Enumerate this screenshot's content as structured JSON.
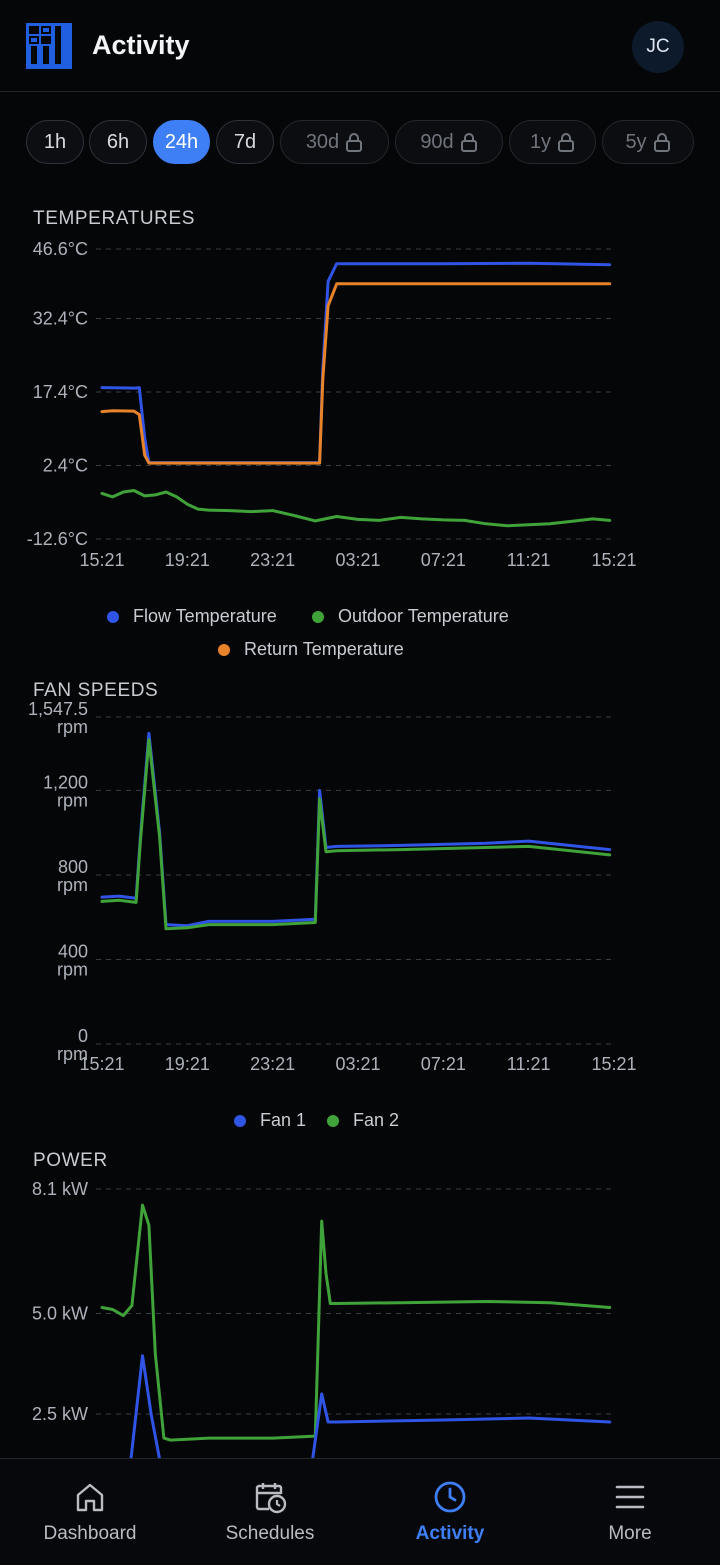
{
  "header": {
    "title": "Activity",
    "avatar_initials": "JC"
  },
  "time_ranges": [
    {
      "label": "1h",
      "active": false,
      "locked": false
    },
    {
      "label": "6h",
      "active": false,
      "locked": false
    },
    {
      "label": "24h",
      "active": true,
      "locked": false
    },
    {
      "label": "7d",
      "active": false,
      "locked": false
    },
    {
      "label": "30d",
      "active": false,
      "locked": true
    },
    {
      "label": "90d",
      "active": false,
      "locked": true
    },
    {
      "label": "1y",
      "active": false,
      "locked": true
    },
    {
      "label": "5y",
      "active": false,
      "locked": true
    }
  ],
  "sections": {
    "temperatures": "TEMPERATURES",
    "fan_speeds": "FAN SPEEDS",
    "power": "POWER"
  },
  "colors": {
    "accent": "#3f7ff6",
    "flow": "#2f54e6",
    "outdoor": "#3fa33a",
    "return": "#e8832a",
    "fan1": "#2f54e6",
    "fan2": "#3fa33a"
  },
  "chart_data": [
    {
      "type": "line",
      "title": "TEMPERATURES",
      "x_ticks": [
        "15:21",
        "19:21",
        "23:21",
        "03:21",
        "07:21",
        "11:21",
        "15:21"
      ],
      "y_ticks": [
        "46.6°C",
        "32.4°C",
        "17.4°C",
        "2.4°C",
        "-12.6°C"
      ],
      "y_tick_values": [
        46.6,
        32.4,
        17.4,
        2.4,
        -12.6
      ],
      "ylim": [
        -12.6,
        46.6
      ],
      "x_range_hours": [
        0,
        24
      ],
      "grid": true,
      "legend_position": "bottom",
      "series": [
        {
          "name": "Flow Temperature",
          "color": "#2f54e6",
          "x": [
            0,
            1.6,
            1.75,
            2.0,
            2.2,
            10.2,
            10.35,
            10.6,
            11.0,
            16,
            20,
            23.8
          ],
          "values": [
            18.3,
            18.2,
            18.3,
            8,
            3.0,
            3.0,
            22,
            40,
            43.6,
            43.6,
            43.7,
            43.4
          ]
        },
        {
          "name": "Return Temperature",
          "color": "#e8832a",
          "x": [
            0,
            0.5,
            1.5,
            1.75,
            2.0,
            2.2,
            10.2,
            10.35,
            10.6,
            11.0,
            16,
            23.8
          ],
          "values": [
            13.4,
            13.6,
            13.5,
            12.8,
            4.5,
            2.9,
            2.9,
            20,
            35,
            39.5,
            39.5,
            39.5
          ]
        },
        {
          "name": "Outdoor Temperature",
          "color": "#3fa33a",
          "x": [
            0,
            0.5,
            1,
            1.5,
            2,
            2.5,
            3,
            3.5,
            4,
            4.5,
            5,
            6,
            7,
            8,
            9,
            10,
            11,
            12,
            13,
            14,
            15,
            16,
            17,
            18,
            19,
            20,
            21,
            22,
            23,
            23.8
          ],
          "values": [
            -3.3,
            -4.0,
            -3.0,
            -2.7,
            -3.8,
            -3.6,
            -3.0,
            -4.0,
            -5.5,
            -6.5,
            -6.7,
            -6.8,
            -7.0,
            -6.8,
            -7.8,
            -8.9,
            -8.0,
            -8.6,
            -8.8,
            -8.2,
            -8.5,
            -8.7,
            -8.8,
            -9.5,
            -9.9,
            -9.7,
            -9.5,
            -9.0,
            -8.5,
            -8.8
          ]
        }
      ]
    },
    {
      "type": "line",
      "title": "FAN SPEEDS",
      "x_ticks": [
        "15:21",
        "19:21",
        "23:21",
        "03:21",
        "07:21",
        "11:21",
        "15:21"
      ],
      "y_ticks": [
        "1,547.5 rpm",
        "1,200 rpm",
        "800 rpm",
        "400 rpm",
        "0 rpm"
      ],
      "y_tick_values": [
        1547.5,
        1200,
        800,
        400,
        0
      ],
      "ylim": [
        0,
        1547.5
      ],
      "x_range_hours": [
        0,
        24
      ],
      "grid": true,
      "legend_position": "bottom",
      "series": [
        {
          "name": "Fan 1",
          "color": "#2f54e6",
          "x": [
            0,
            0.8,
            1.6,
            1.8,
            2.2,
            2.7,
            3.0,
            4,
            5,
            8,
            10.0,
            10.2,
            10.5,
            11,
            14,
            18,
            20,
            23.8
          ],
          "values": [
            695,
            700,
            690,
            980,
            1470,
            1000,
            565,
            560,
            580,
            580,
            590,
            1200,
            930,
            935,
            940,
            950,
            960,
            920
          ]
        },
        {
          "name": "Fan 2",
          "color": "#3fa33a",
          "x": [
            0,
            0.8,
            1.6,
            1.8,
            2.2,
            2.7,
            3.0,
            4,
            5,
            8,
            10.0,
            10.2,
            10.5,
            11,
            14,
            18,
            20,
            23.8
          ],
          "values": [
            675,
            680,
            670,
            960,
            1440,
            980,
            545,
            550,
            565,
            565,
            575,
            1160,
            910,
            915,
            920,
            930,
            935,
            895
          ]
        }
      ]
    },
    {
      "type": "line",
      "title": "POWER",
      "y_ticks": [
        "8.1 kW",
        "5.0 kW",
        "2.5 kW"
      ],
      "y_tick_values": [
        8.1,
        5.0,
        2.5
      ],
      "x_range_hours": [
        0,
        24
      ],
      "grid": true,
      "series": [
        {
          "name": "",
          "color": "#3fa33a",
          "x": [
            0,
            0.5,
            1.0,
            1.4,
            1.9,
            2.2,
            2.5,
            2.9,
            3.2,
            5,
            8,
            10.0,
            10.3,
            10.5,
            10.7,
            11,
            14,
            18,
            21,
            23.8
          ],
          "values": [
            5.15,
            5.1,
            4.95,
            5.2,
            7.7,
            7.2,
            4.0,
            1.9,
            1.85,
            1.9,
            1.9,
            1.95,
            7.3,
            6.0,
            5.25,
            5.25,
            5.27,
            5.3,
            5.27,
            5.15
          ]
        },
        {
          "name": "",
          "color": "#2f54e6",
          "x": [
            1.3,
            1.9,
            2.3,
            2.8,
            9.8,
            10.3,
            10.6,
            11,
            16,
            20,
            23.8
          ],
          "values": [
            1.1,
            3.95,
            2.5,
            1.1,
            1.1,
            3.0,
            2.3,
            2.3,
            2.35,
            2.4,
            2.3
          ]
        }
      ]
    }
  ],
  "legends": {
    "temperatures": [
      "Flow Temperature",
      "Outdoor Temperature",
      "Return Temperature"
    ],
    "fans": [
      "Fan 1",
      "Fan 2"
    ]
  },
  "tabs": [
    {
      "label": "Dashboard",
      "icon": "home-icon",
      "active": false
    },
    {
      "label": "Schedules",
      "icon": "calendar-clock-icon",
      "active": false
    },
    {
      "label": "Activity",
      "icon": "clock-icon",
      "active": true
    },
    {
      "label": "More",
      "icon": "menu-icon",
      "active": false
    }
  ]
}
